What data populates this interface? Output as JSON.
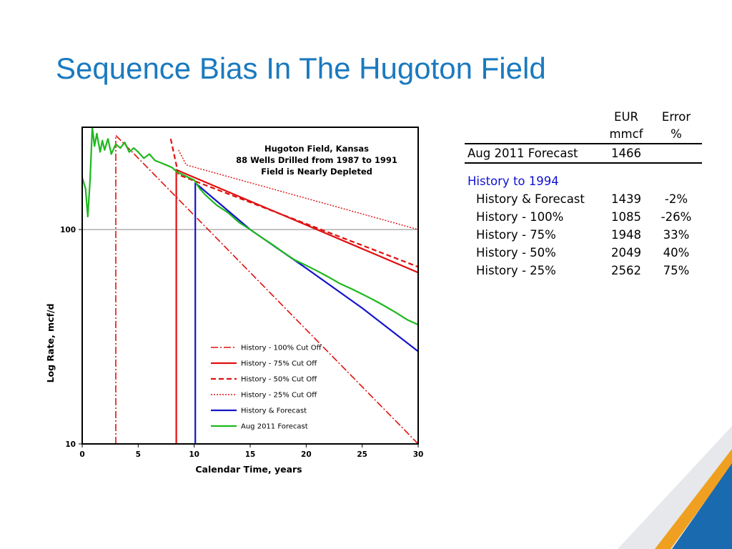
{
  "slide": {
    "title": "Sequence Bias In The Hugoton Field"
  },
  "table": {
    "header": {
      "eur_line1": "EUR",
      "eur_line2": "mmcf",
      "error_line1": "Error",
      "error_line2": "%"
    },
    "top_row": {
      "label": "Aug 2011 Forecast",
      "eur": "1466",
      "error": ""
    },
    "section_label": "History to 1994",
    "rows": [
      {
        "label": "History & Forecast",
        "eur": "1439",
        "error": "-2%"
      },
      {
        "label": "History - 100%",
        "eur": "1085",
        "error": "-26%"
      },
      {
        "label": "History - 75%",
        "eur": "1948",
        "error": "33%"
      },
      {
        "label": "History - 50%",
        "eur": "2049",
        "error": "40%"
      },
      {
        "label": "History - 25%",
        "eur": "2562",
        "error": "75%"
      }
    ]
  },
  "chart_data": {
    "type": "line",
    "title": [
      "Hugoton Field, Kansas",
      "88 Wells Drilled from 1987 to 1991",
      "Field is Nearly Depleted"
    ],
    "xlabel": "Calendar Time, years",
    "ylabel": "Log Rate, mcf/d",
    "xlim": [
      0,
      30
    ],
    "ylim": [
      10,
      300
    ],
    "yscale": "log",
    "xticks": [
      0,
      5,
      10,
      15,
      20,
      25,
      30
    ],
    "yticks": [
      10,
      100
    ],
    "hline": 100,
    "legend_position": "bottom-center",
    "series": [
      {
        "name": "History - 100% Cut Off",
        "color": "#e01010",
        "dash": "10,3,2,3",
        "width": 1.6,
        "points": [
          [
            3,
            10
          ],
          [
            3,
            275
          ],
          [
            30,
            10
          ]
        ]
      },
      {
        "name": "History - 75% Cut Off",
        "color": "#e01010",
        "dash": "",
        "width": 2.2,
        "points": [
          [
            8.4,
            10
          ],
          [
            8.4,
            190
          ],
          [
            30,
            63
          ]
        ]
      },
      {
        "name": "History - 50% Cut Off",
        "color": "#e01010",
        "dash": "7,4",
        "width": 2.2,
        "points": [
          [
            7.9,
            265
          ],
          [
            8.6,
            180
          ],
          [
            30,
            67
          ]
        ]
      },
      {
        "name": "History - 25% Cut Off",
        "color": "#e01010",
        "dash": "2,2",
        "width": 1.4,
        "points": [
          [
            8.6,
            235
          ],
          [
            9.3,
            200
          ],
          [
            30,
            100
          ]
        ]
      },
      {
        "name": "History & Forecast",
        "color": "#1414cc",
        "dash": "",
        "width": 2.2,
        "points": [
          [
            10.1,
            10
          ],
          [
            10.1,
            165
          ],
          [
            15,
            100
          ],
          [
            20,
            66
          ],
          [
            25,
            43
          ],
          [
            30,
            27
          ]
        ]
      },
      {
        "name": "Aug 2011 Forecast",
        "color": "#1db81d",
        "dash": "",
        "width": 2.2,
        "points": [
          [
            0,
            175
          ],
          [
            0.3,
            155
          ],
          [
            0.5,
            115
          ],
          [
            0.7,
            170
          ],
          [
            0.9,
            300
          ],
          [
            1.1,
            245
          ],
          [
            1.3,
            280
          ],
          [
            1.6,
            230
          ],
          [
            1.8,
            260
          ],
          [
            2.0,
            235
          ],
          [
            2.3,
            265
          ],
          [
            2.6,
            225
          ],
          [
            3.0,
            250
          ],
          [
            3.4,
            240
          ],
          [
            3.8,
            255
          ],
          [
            4.2,
            230
          ],
          [
            4.6,
            240
          ],
          [
            5.0,
            230
          ],
          [
            5.5,
            215
          ],
          [
            6.0,
            225
          ],
          [
            6.5,
            210
          ],
          [
            7.0,
            205
          ],
          [
            7.5,
            200
          ],
          [
            8.0,
            195
          ],
          [
            8.5,
            185
          ],
          [
            9.0,
            180
          ],
          [
            9.5,
            175
          ],
          [
            10.0,
            170
          ],
          [
            10.5,
            155
          ],
          [
            11.0,
            145
          ],
          [
            12.0,
            130
          ],
          [
            13.0,
            120
          ],
          [
            14.0,
            108
          ],
          [
            15.0,
            100
          ],
          [
            16.0,
            92
          ],
          [
            17.0,
            85
          ],
          [
            18.0,
            78
          ],
          [
            19.0,
            72
          ],
          [
            20.0,
            68
          ],
          [
            21.0,
            64
          ],
          [
            22.0,
            60
          ],
          [
            23.0,
            56
          ],
          [
            24.0,
            53
          ],
          [
            25.0,
            50
          ],
          [
            26.0,
            47
          ],
          [
            27.0,
            44
          ],
          [
            28.0,
            41
          ],
          [
            29.0,
            38
          ],
          [
            30.0,
            36
          ]
        ]
      }
    ],
    "colors": {
      "frame": "#000000",
      "hline": "#888888"
    }
  },
  "decor": {
    "accent_orange": "#f0a020",
    "accent_blue": "#1a6ab0",
    "light_gray": "#e6e8ec",
    "title_color": "#1a7abf"
  }
}
